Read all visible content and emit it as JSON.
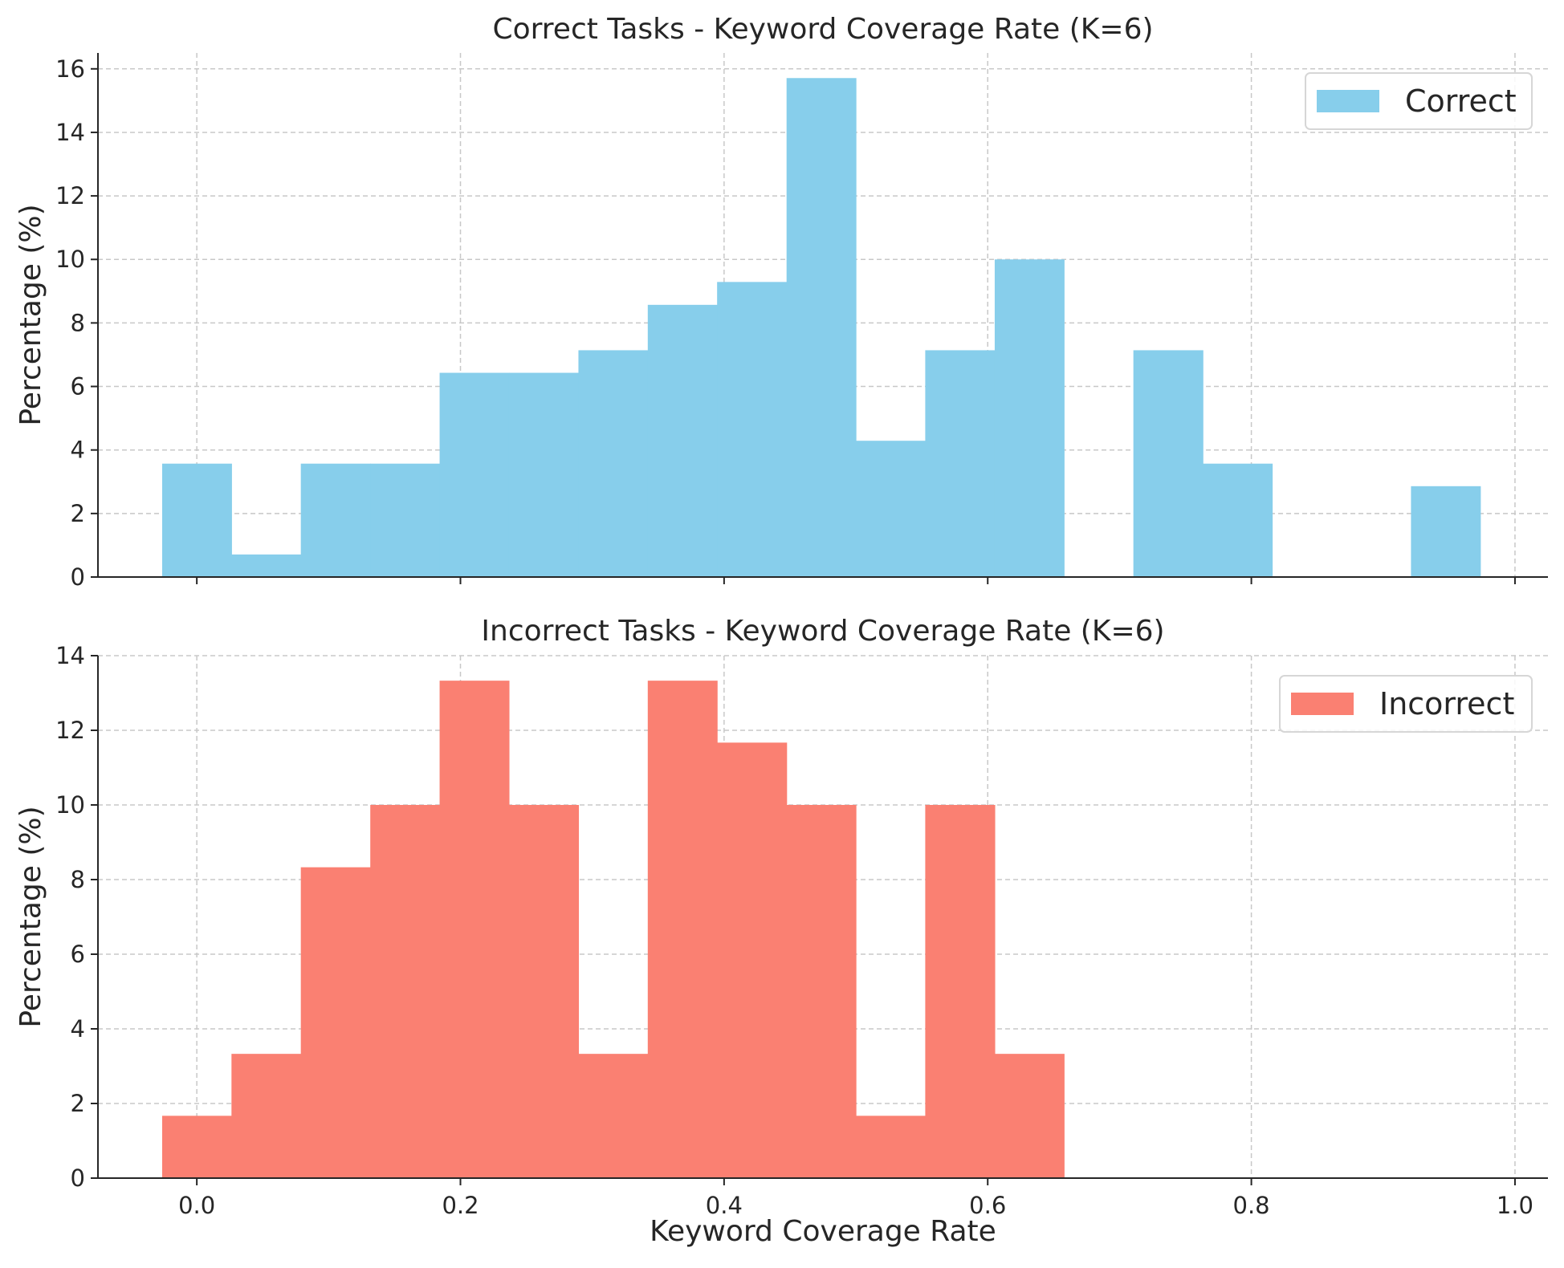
{
  "chart_data": [
    {
      "type": "bar",
      "title": "Correct Tasks - Keyword Coverage Rate (K=6)",
      "xlabel": "",
      "ylabel": "Percentage (%)",
      "xlim": [
        -0.075,
        1.025
      ],
      "ylim": [
        0,
        16.5
      ],
      "yticks": [
        0,
        2,
        4,
        6,
        8,
        10,
        12,
        14,
        16
      ],
      "xticks": [
        0.0,
        0.2,
        0.4,
        0.6,
        0.8,
        1.0
      ],
      "grid": true,
      "legend_position": "top-right",
      "bin_edges": [
        -0.0263,
        0.0263,
        0.0789,
        0.1316,
        0.1842,
        0.2368,
        0.2895,
        0.3421,
        0.3947,
        0.4474,
        0.5,
        0.5526,
        0.6053,
        0.6579,
        0.7105,
        0.7632,
        0.8158,
        0.8684,
        0.9211,
        0.9737
      ],
      "series": [
        {
          "name": "Correct",
          "color": "#87CEEB",
          "values": [
            3.57,
            0.71,
            3.57,
            3.57,
            6.43,
            6.43,
            7.14,
            8.57,
            9.29,
            15.71,
            4.29,
            7.14,
            10.0,
            0,
            7.14,
            3.57,
            0,
            0,
            2.86
          ]
        }
      ]
    },
    {
      "type": "bar",
      "title": "Incorrect Tasks - Keyword Coverage Rate (K=6)",
      "xlabel": "Keyword Coverage Rate",
      "ylabel": "Percentage (%)",
      "xlim": [
        -0.075,
        1.025
      ],
      "ylim": [
        0,
        14
      ],
      "yticks": [
        0,
        2,
        4,
        6,
        8,
        10,
        12,
        14
      ],
      "xticks": [
        0.0,
        0.2,
        0.4,
        0.6,
        0.8,
        1.0
      ],
      "xticklabels": [
        "0.0",
        "0.2",
        "0.4",
        "0.6",
        "0.8",
        "1.0"
      ],
      "grid": true,
      "legend_position": "top-right",
      "bin_edges": [
        -0.0263,
        0.0263,
        0.0789,
        0.1316,
        0.1842,
        0.2368,
        0.2895,
        0.3421,
        0.3947,
        0.4474,
        0.5,
        0.5526,
        0.6053,
        0.6579
      ],
      "series": [
        {
          "name": "Incorrect",
          "color": "#FA8072",
          "values": [
            1.67,
            3.33,
            8.33,
            10.0,
            13.33,
            10.0,
            3.33,
            13.33,
            11.67,
            10.0,
            1.67,
            10.0,
            3.33
          ]
        }
      ]
    }
  ]
}
